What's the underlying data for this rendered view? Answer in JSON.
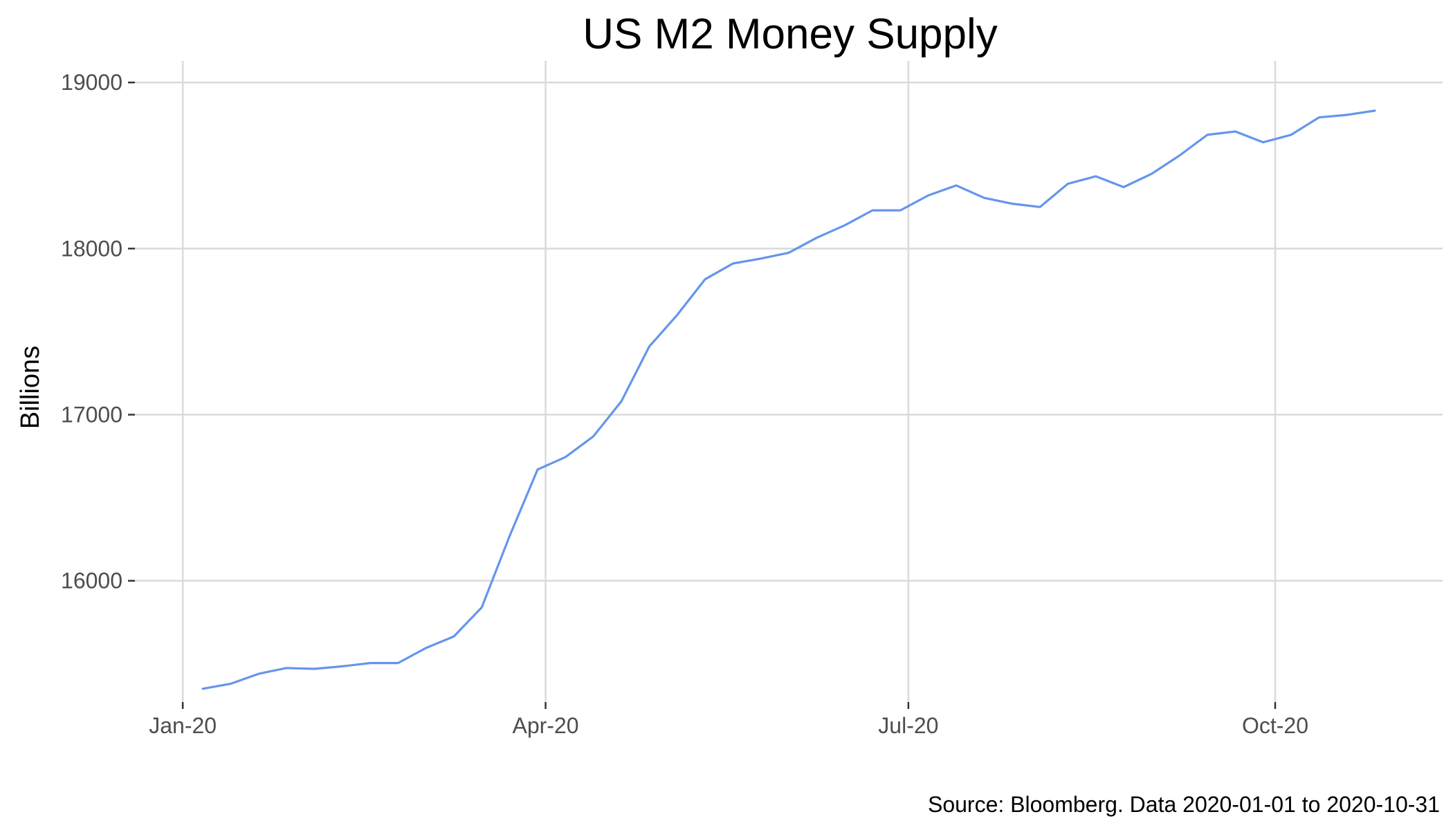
{
  "chart_data": {
    "type": "line",
    "title": "US M2 Money Supply",
    "xlabel": "",
    "ylabel": "Billions",
    "caption": "Source: Bloomberg. Data 2020-01-01 to 2020-10-31",
    "x_ticks": [
      {
        "date": "2020-01-01",
        "label": "Jan-20"
      },
      {
        "date": "2020-04-01",
        "label": "Apr-20"
      },
      {
        "date": "2020-07-01",
        "label": "Jul-20"
      },
      {
        "date": "2020-10-01",
        "label": "Oct-20"
      }
    ],
    "y_ticks": [
      16000,
      17000,
      18000,
      19000
    ],
    "xlim": [
      "2019-12-20",
      "2020-11-12"
    ],
    "ylim": [
      15270,
      19130
    ],
    "grid": true,
    "legend": "none",
    "colors": {
      "series": "#6495ed",
      "grid": "#dadada",
      "tick_text": "#4d4d4d"
    },
    "series": [
      {
        "x": [
          "2020-01-06",
          "2020-01-13",
          "2020-01-20",
          "2020-01-27",
          "2020-02-03",
          "2020-02-10",
          "2020-02-17",
          "2020-02-24",
          "2020-03-02",
          "2020-03-09",
          "2020-03-16",
          "2020-03-23",
          "2020-03-30",
          "2020-04-06",
          "2020-04-13",
          "2020-04-20",
          "2020-04-27",
          "2020-05-04",
          "2020-05-11",
          "2020-05-18",
          "2020-05-25",
          "2020-06-01",
          "2020-06-08",
          "2020-06-15",
          "2020-06-22",
          "2020-06-29",
          "2020-07-06",
          "2020-07-13",
          "2020-07-20",
          "2020-07-27",
          "2020-08-03",
          "2020-08-10",
          "2020-08-17",
          "2020-08-24",
          "2020-08-31",
          "2020-09-07",
          "2020-09-14",
          "2020-09-21",
          "2020-09-28",
          "2020-10-05",
          "2020-10-12",
          "2020-10-19",
          "2020-10-26"
        ],
        "values": [
          15350,
          15380,
          15440,
          15475,
          15470,
          15485,
          15505,
          15505,
          15595,
          15665,
          15840,
          16270,
          16670,
          16745,
          16870,
          17080,
          17410,
          17600,
          17815,
          17910,
          17940,
          17975,
          18065,
          18140,
          18230,
          18230,
          18320,
          18380,
          18305,
          18270,
          18250,
          18390,
          18435,
          18370,
          18450,
          18560,
          18685,
          18705,
          18640,
          18685,
          18790,
          18805,
          18830
        ]
      }
    ]
  }
}
